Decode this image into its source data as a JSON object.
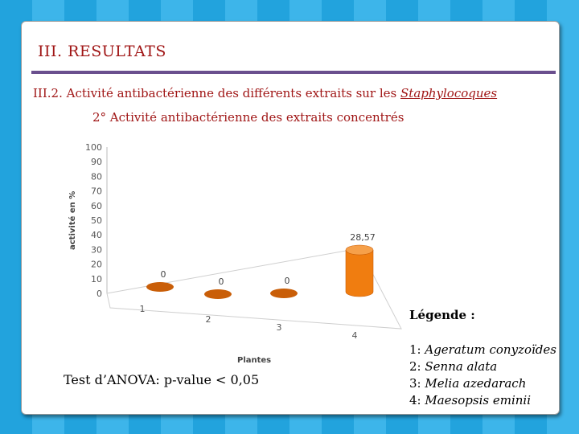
{
  "slide": {
    "title": "III. RESULTATS",
    "subtitle_prefix": "III.2. Activité antibactérienne des différents extraits sur les ",
    "subtitle_emph": "Staphylocoques",
    "subsubtitle": "2° Activité antibactérienne des extraits concentrés",
    "anova": "Test d’ANOVA: p-value < 0,05",
    "legend_title": "Légende :",
    "legend": [
      {
        "num": "1: ",
        "name": "Ageratum conyzoïdes"
      },
      {
        "num": "2: ",
        "name": "Senna alata"
      },
      {
        "num": "3: ",
        "name": "Melia azedarach"
      },
      {
        "num": "4: ",
        "name": "Maesopsis eminii"
      }
    ]
  },
  "colors": {
    "bar": "#f07d10",
    "bar_dark": "#c95e08",
    "title": "#a01616",
    "rule": "#6a4f8e"
  },
  "chart_data": {
    "type": "bar",
    "categories": [
      "1",
      "2",
      "3",
      "4"
    ],
    "values": [
      0,
      0,
      0,
      28.57
    ],
    "data_labels": [
      "0",
      "0",
      "0",
      "28,57"
    ],
    "xlabel": "Plantes",
    "ylabel": "activité en %",
    "ylim": [
      0,
      100
    ],
    "yticks": [
      0,
      10,
      20,
      30,
      40,
      50,
      60,
      70,
      80,
      90,
      100
    ],
    "grid": false,
    "style": "3d-cylinder"
  }
}
